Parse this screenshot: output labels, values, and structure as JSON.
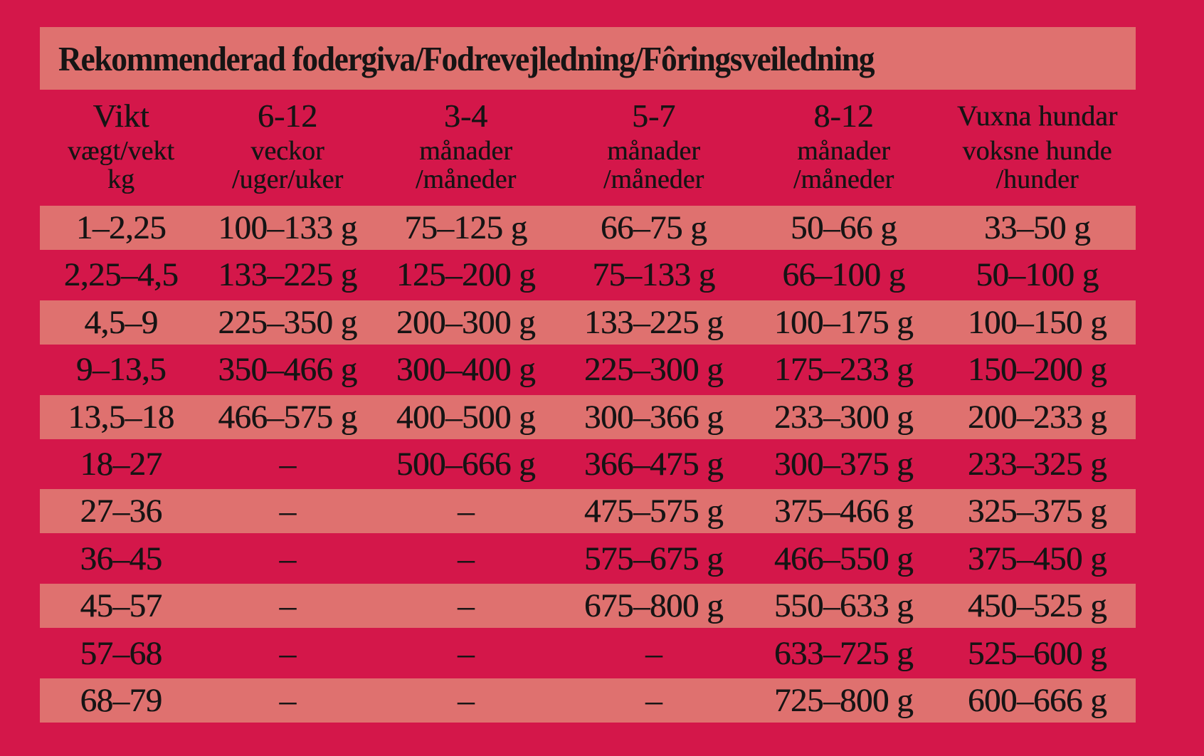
{
  "title": "Rekommenderad fodergiva/Fodrevejledning/Fôringsveiledning",
  "colors": {
    "background": "#D4174A",
    "stripe": "#DF716F",
    "text": "#161414"
  },
  "table": {
    "columns": [
      {
        "line1": "Vikt",
        "line2": "vægt/vekt",
        "line3": "kg"
      },
      {
        "line1": "6-12",
        "line2": "veckor",
        "line3": "/uger/uker"
      },
      {
        "line1": "3-4",
        "line2": "månader",
        "line3": "/måneder"
      },
      {
        "line1": "5-7",
        "line2": "månader",
        "line3": "/måneder"
      },
      {
        "line1": "8-12",
        "line2": "månader",
        "line3": "/måneder"
      },
      {
        "line1": "Vuxna hundar",
        "line2": "voksne hunde",
        "line3": "/hunder"
      }
    ],
    "rows": [
      [
        "1–2,25",
        "100–133 g",
        "75–125 g",
        "66–75 g",
        "50–66 g",
        "33–50 g"
      ],
      [
        "2,25–4,5",
        "133–225 g",
        "125–200 g",
        "75–133 g",
        "66–100 g",
        "50–100 g"
      ],
      [
        "4,5–9",
        "225–350 g",
        "200–300 g",
        "133–225 g",
        "100–175 g",
        "100–150 g"
      ],
      [
        "9–13,5",
        "350–466 g",
        "300–400 g",
        "225–300 g",
        "175–233 g",
        "150–200 g"
      ],
      [
        "13,5–18",
        "466–575 g",
        "400–500 g",
        "300–366 g",
        "233–300 g",
        "200–233 g"
      ],
      [
        "18–27",
        "–",
        "500–666 g",
        "366–475 g",
        "300–375 g",
        "233–325 g"
      ],
      [
        "27–36",
        "–",
        "–",
        "475–575 g",
        "375–466 g",
        "325–375 g"
      ],
      [
        "36–45",
        "–",
        "–",
        "575–675 g",
        "466–550 g",
        "375–450 g"
      ],
      [
        "45–57",
        "–",
        "–",
        "675–800 g",
        "550–633 g",
        "450–525 g"
      ],
      [
        "57–68",
        "–",
        "–",
        "–",
        "633–725 g",
        "525–600 g"
      ],
      [
        "68–79",
        "–",
        "–",
        "–",
        "725–800 g",
        "600–666 g"
      ]
    ]
  }
}
